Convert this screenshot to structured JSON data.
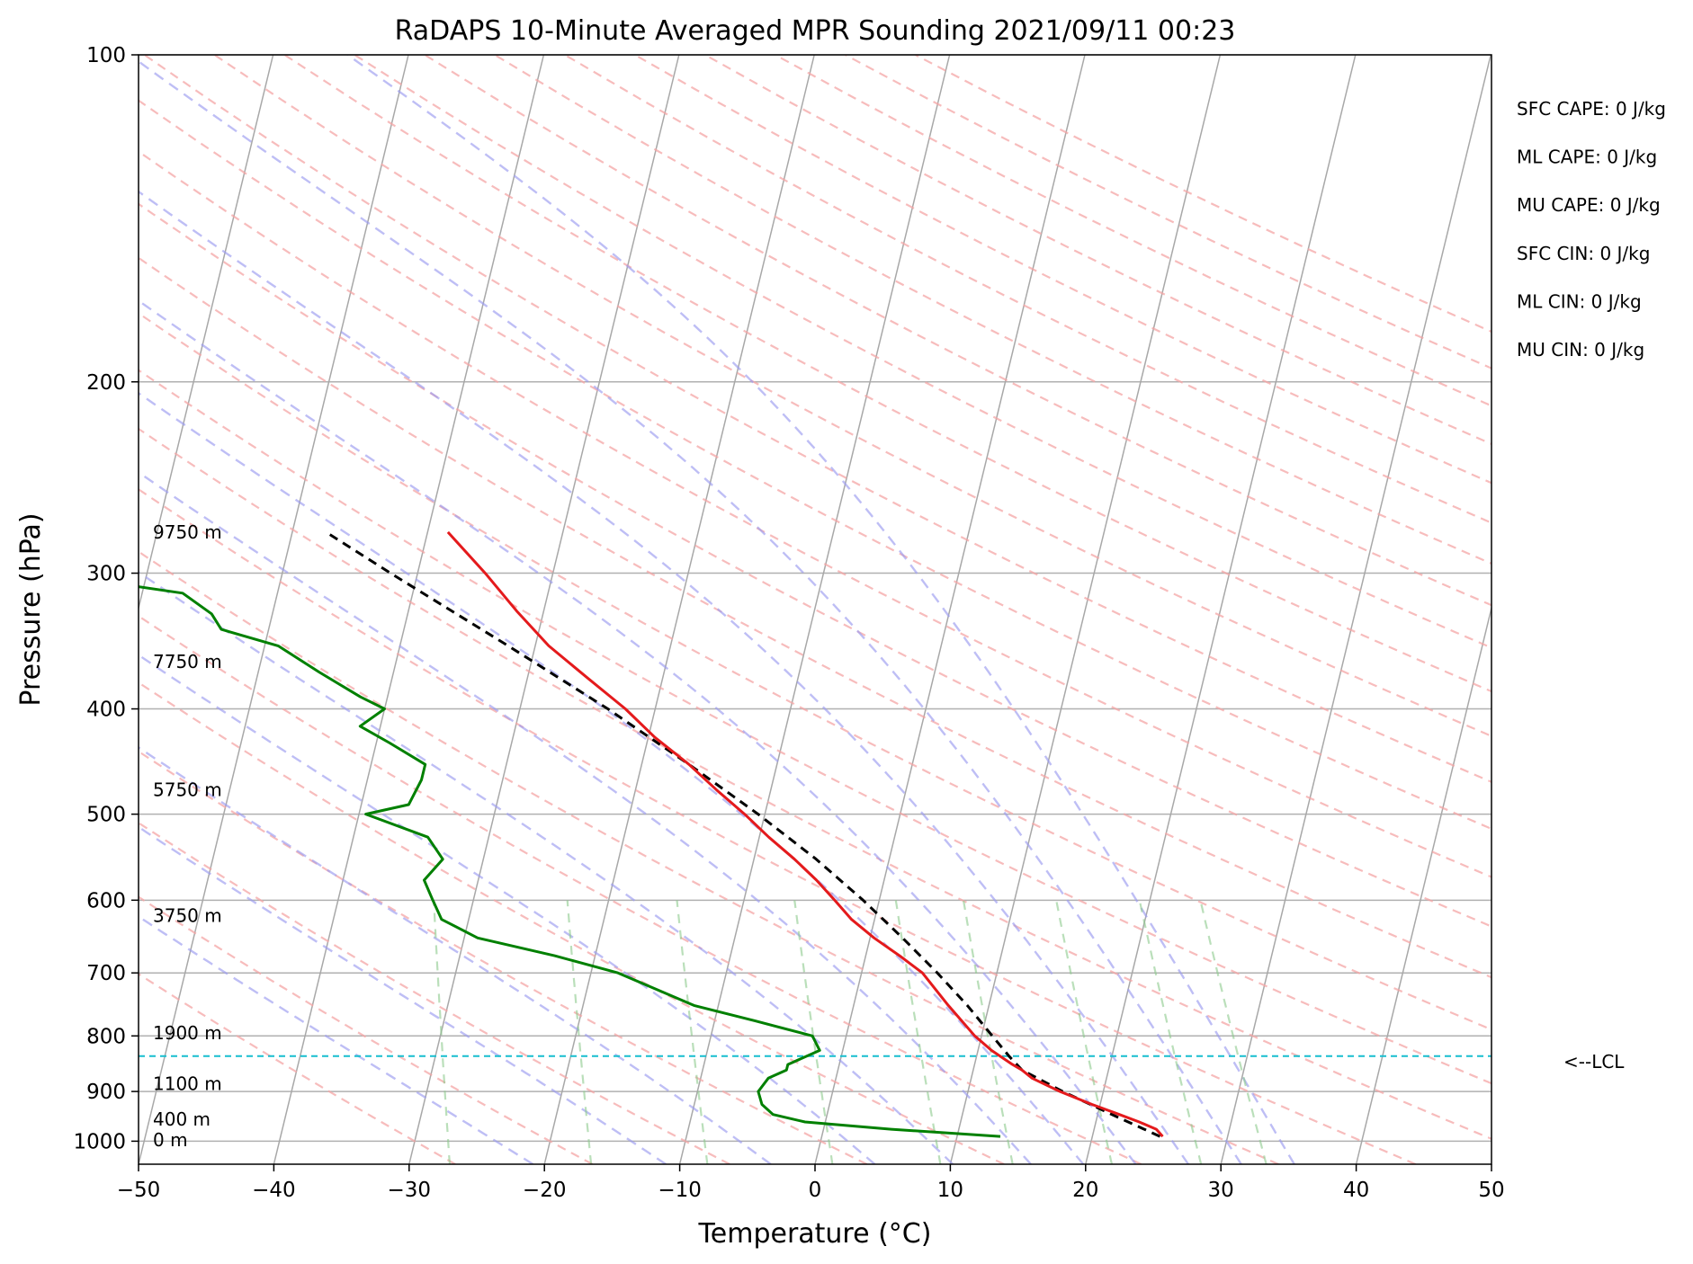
{
  "chart_data": {
    "type": "line",
    "title": "RaDAPS 10-Minute Averaged MPR Sounding 2021/09/11 00:23",
    "xlabel": "Temperature (°C)",
    "ylabel": "Pressure (hPa)",
    "xlim": [
      -50,
      50
    ],
    "ylim": [
      1050,
      100
    ],
    "y_scale": "log",
    "grid": true,
    "x_ticks": [
      "−50",
      "−40",
      "−30",
      "−20",
      "−10",
      "0",
      "10",
      "20",
      "30",
      "40",
      "50"
    ],
    "y_ticks": [
      {
        "p": 100,
        "label": "100"
      },
      {
        "p": 200,
        "label": "200"
      },
      {
        "p": 300,
        "label": "300"
      },
      {
        "p": 400,
        "label": "400"
      },
      {
        "p": 500,
        "label": "500"
      },
      {
        "p": 600,
        "label": "600"
      },
      {
        "p": 700,
        "label": "700"
      },
      {
        "p": 800,
        "label": "800"
      },
      {
        "p": 900,
        "label": "900"
      },
      {
        "p": 1000,
        "label": "1000"
      }
    ],
    "height_labels": [
      {
        "p": 275,
        "label": "9750 m"
      },
      {
        "p": 362,
        "label": "7750 m"
      },
      {
        "p": 475,
        "label": "5750 m"
      },
      {
        "p": 620,
        "label": "3750 m"
      },
      {
        "p": 795,
        "label": "1900 m"
      },
      {
        "p": 885,
        "label": "1100 m"
      },
      {
        "p": 955,
        "label": "400 m"
      },
      {
        "p": 997,
        "label": "0 m"
      }
    ],
    "series": [
      {
        "color": "#e41a1c",
        "temperature": [
          {
            "p": 990,
            "t": 25.2
          },
          {
            "p": 975,
            "t": 24.6
          },
          {
            "p": 960,
            "t": 23.2
          },
          {
            "p": 945,
            "t": 21.6
          },
          {
            "p": 925,
            "t": 19.4
          },
          {
            "p": 900,
            "t": 16.8
          },
          {
            "p": 875,
            "t": 14.5
          },
          {
            "p": 860,
            "t": 13.6
          },
          {
            "p": 850,
            "t": 12.8
          },
          {
            "p": 825,
            "t": 11.0
          },
          {
            "p": 800,
            "t": 9.5
          },
          {
            "p": 750,
            "t": 7.0
          },
          {
            "p": 700,
            "t": 4.5
          },
          {
            "p": 675,
            "t": 2.5
          },
          {
            "p": 650,
            "t": 0.3
          },
          {
            "p": 625,
            "t": -1.7
          },
          {
            "p": 600,
            "t": -3.3
          },
          {
            "p": 575,
            "t": -5.0
          },
          {
            "p": 550,
            "t": -7.0
          },
          {
            "p": 525,
            "t": -9.3
          },
          {
            "p": 500,
            "t": -11.5
          },
          {
            "p": 475,
            "t": -14.0
          },
          {
            "p": 450,
            "t": -16.5
          },
          {
            "p": 425,
            "t": -19.5
          },
          {
            "p": 400,
            "t": -22.2
          },
          {
            "p": 375,
            "t": -25.5
          },
          {
            "p": 350,
            "t": -29.0
          },
          {
            "p": 325,
            "t": -32.0
          },
          {
            "p": 300,
            "t": -35.0
          },
          {
            "p": 275,
            "t": -38.5
          }
        ]
      },
      {
        "color": "#008000",
        "dewpoint": [
          {
            "p": 990,
            "t": 13.2
          },
          {
            "p": 975,
            "t": 5.0
          },
          {
            "p": 960,
            "t": -1.5
          },
          {
            "p": 945,
            "t": -4.0
          },
          {
            "p": 925,
            "t": -5.0
          },
          {
            "p": 900,
            "t": -5.5
          },
          {
            "p": 875,
            "t": -5.0
          },
          {
            "p": 860,
            "t": -3.8
          },
          {
            "p": 850,
            "t": -3.8
          },
          {
            "p": 825,
            "t": -1.7
          },
          {
            "p": 800,
            "t": -2.5
          },
          {
            "p": 775,
            "t": -7.0
          },
          {
            "p": 750,
            "t": -11.8
          },
          {
            "p": 700,
            "t": -18.0
          },
          {
            "p": 675,
            "t": -23.0
          },
          {
            "p": 650,
            "t": -29.0
          },
          {
            "p": 625,
            "t": -32.0
          },
          {
            "p": 600,
            "t": -33.0
          },
          {
            "p": 575,
            "t": -34.0
          },
          {
            "p": 550,
            "t": -33.0
          },
          {
            "p": 525,
            "t": -34.5
          },
          {
            "p": 500,
            "t": -39.5
          },
          {
            "p": 490,
            "t": -36.5
          },
          {
            "p": 465,
            "t": -36.0
          },
          {
            "p": 450,
            "t": -36.0
          },
          {
            "p": 430,
            "t": -39.0
          },
          {
            "p": 415,
            "t": -41.5
          },
          {
            "p": 400,
            "t": -40.0
          },
          {
            "p": 390,
            "t": -42.0
          },
          {
            "p": 370,
            "t": -45.5
          },
          {
            "p": 350,
            "t": -49.0
          },
          {
            "p": 338,
            "t": -53.5
          },
          {
            "p": 327,
            "t": -54.5
          },
          {
            "p": 313,
            "t": -57.0
          },
          {
            "p": 303,
            "t": -65.0
          },
          {
            "p": 295,
            "t": -80.0
          }
        ]
      },
      {
        "color": "#000000",
        "style": "dashed",
        "parcel": [
          {
            "p": 990,
            "t": 25.0
          },
          {
            "p": 950,
            "t": 21.5
          },
          {
            "p": 900,
            "t": 17.0
          },
          {
            "p": 860,
            "t": 13.6
          },
          {
            "p": 835,
            "t": 12.4
          },
          {
            "p": 800,
            "t": 10.8
          },
          {
            "p": 750,
            "t": 8.4
          },
          {
            "p": 700,
            "t": 5.6
          },
          {
            "p": 650,
            "t": 2.4
          },
          {
            "p": 600,
            "t": -1.2
          },
          {
            "p": 550,
            "t": -5.4
          },
          {
            "p": 500,
            "t": -10.5
          },
          {
            "p": 450,
            "t": -16.5
          },
          {
            "p": 400,
            "t": -23.5
          },
          {
            "p": 350,
            "t": -32.0
          },
          {
            "p": 300,
            "t": -42.0
          },
          {
            "p": 275,
            "t": -47.5
          }
        ]
      }
    ],
    "lcl": {
      "p": 835,
      "label": "<--LCL"
    },
    "stats": [
      "SFC CAPE: 0 J/kg",
      "ML CAPE: 0 J/kg",
      "MU CAPE: 0 J/kg",
      "SFC CIN: 0 J/kg",
      "ML CIN: 0 J/kg",
      "MU CIN: 0 J/kg"
    ]
  }
}
